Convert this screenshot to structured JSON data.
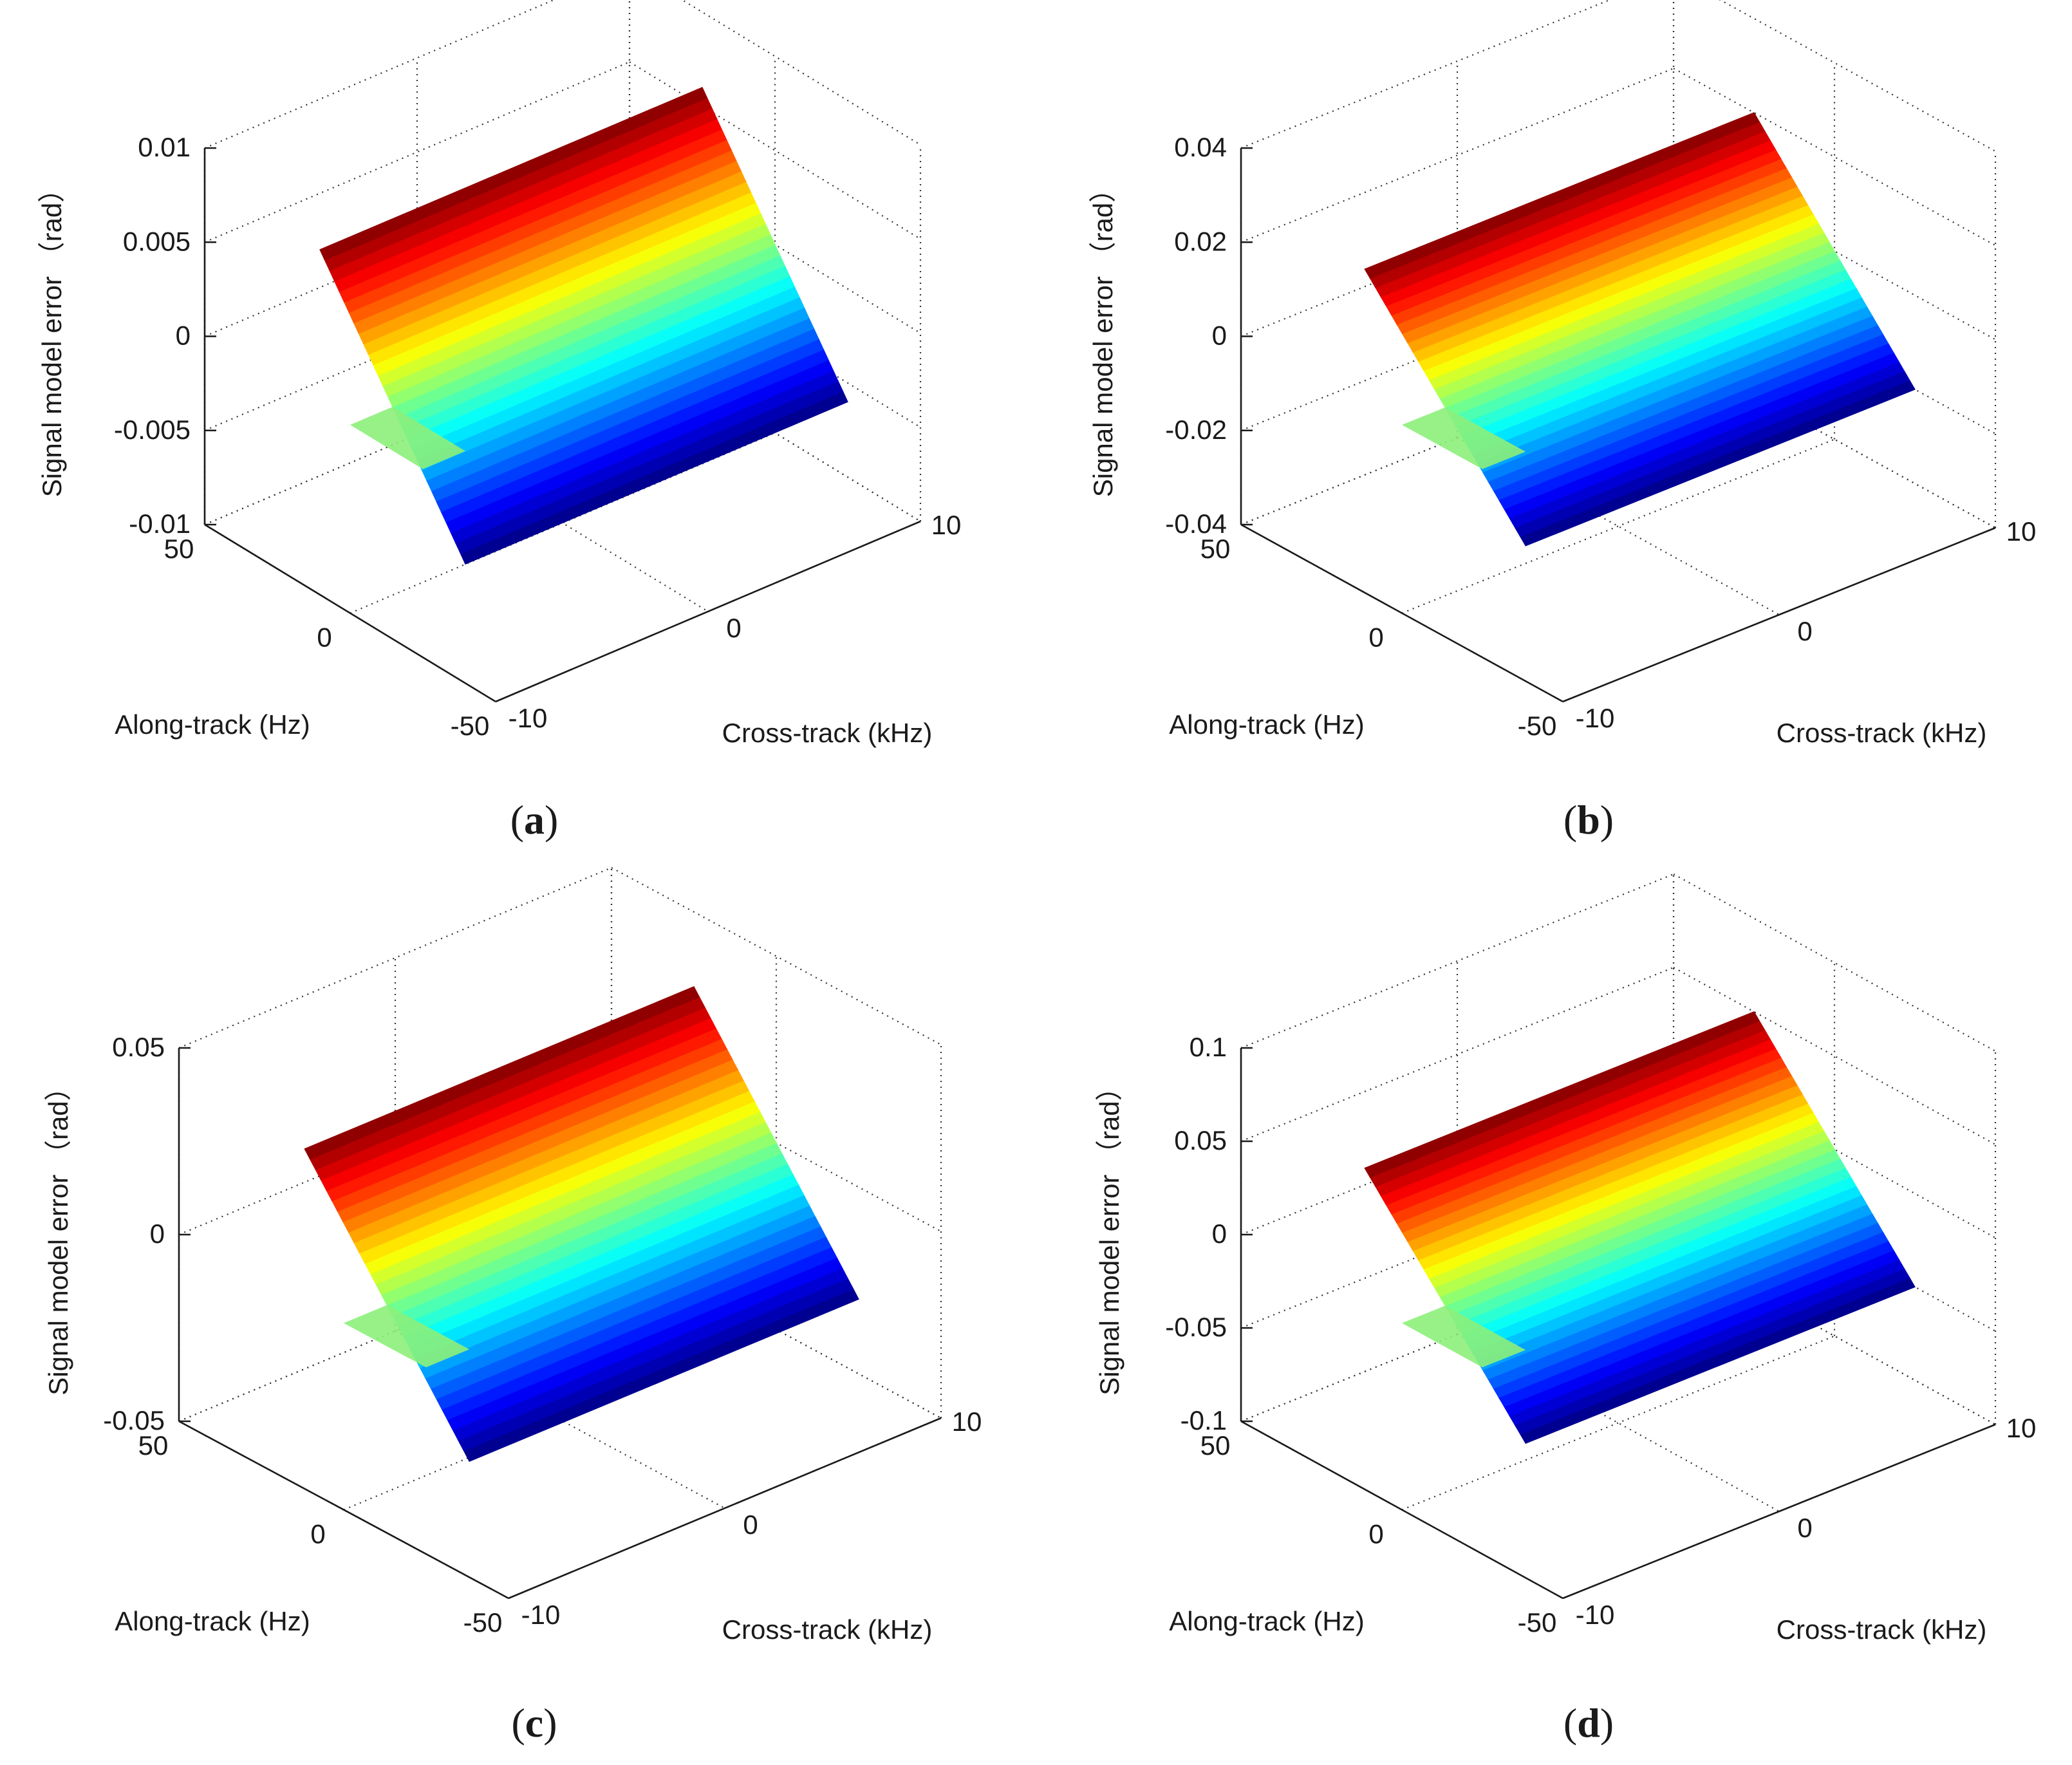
{
  "figure": {
    "background": "#ffffff",
    "colormap": "jet",
    "colors": {
      "box": "#1a1a1a",
      "grid": "#333333",
      "text": "#1a1a1a",
      "green_shelf": "#8CF07A",
      "ridge_light": "#FFFF50"
    }
  },
  "chart_data": [
    {
      "type": "surface3d",
      "panel": "(a)",
      "panel_letter": "a",
      "title": "",
      "xlabel": "Cross-track (kHz)",
      "ylabel": "Along-track (Hz)",
      "zlabel": "Signal model error （rad）",
      "xlim": [
        -10,
        10
      ],
      "ylim": [
        -50,
        50
      ],
      "zlim": [
        -0.01,
        0.01
      ],
      "xticks": [
        -10,
        0,
        10
      ],
      "xtick_labels": [
        "-10",
        "0",
        "10"
      ],
      "yticks": [
        -50,
        0,
        50
      ],
      "ytick_labels": [
        "-50",
        "0",
        "50"
      ],
      "zticks": [
        -0.01,
        -0.005,
        0,
        0.005,
        0.01
      ],
      "ztick_labels": [
        "-0.01",
        "-0.005",
        "0",
        "0.005",
        "0.01"
      ],
      "grid": true,
      "surface": {
        "along_track_hz": [
          -25,
          25
        ],
        "cross_track_khz": [
          -10,
          10
        ],
        "error_rad_at_along_min": -0.006,
        "error_rad_at_along_max": 0.006,
        "bottom_edge_rad": [
          -0.01,
          0.0
        ],
        "top_edge_rad": [
          0.0,
          0.01
        ],
        "ramp_start_khz": -10,
        "ramp_end_khz": -8
      }
    },
    {
      "type": "surface3d",
      "panel": "(b)",
      "panel_letter": "b",
      "title": "",
      "xlabel": "Cross-track (kHz)",
      "ylabel": "Along-track (Hz)",
      "zlabel": "Signal model error （rad）",
      "xlim": [
        -10,
        10
      ],
      "ylim": [
        -50,
        50
      ],
      "zlim": [
        -0.04,
        0.04
      ],
      "xticks": [
        -10,
        0,
        10
      ],
      "xtick_labels": [
        "-10",
        "0",
        "10"
      ],
      "yticks": [
        -50,
        0,
        50
      ],
      "ytick_labels": [
        "-50",
        "0",
        "50"
      ],
      "zticks": [
        -0.04,
        -0.02,
        0,
        0.02,
        0.04
      ],
      "ztick_labels": [
        "-0.04",
        "-0.02",
        "0",
        "0.02",
        "0.04"
      ],
      "grid": true,
      "surface": {
        "along_track_hz": [
          -25,
          25
        ],
        "cross_track_khz": [
          -10,
          10
        ],
        "error_rad_at_along_min": -0.02,
        "error_rad_at_along_max": 0.02,
        "bottom_edge_rad": [
          -0.036,
          0.0
        ],
        "top_edge_rad": [
          0.0,
          0.036
        ],
        "ramp_start_khz": -10,
        "ramp_end_khz": -8
      }
    },
    {
      "type": "surface3d",
      "panel": "(c)",
      "panel_letter": "c",
      "title": "",
      "xlabel": "Cross-track (kHz)",
      "ylabel": "Along-track (Hz)",
      "zlabel": "Signal model error （rad）",
      "xlim": [
        -10,
        10
      ],
      "ylim": [
        -50,
        50
      ],
      "zlim": [
        -0.05,
        0.05
      ],
      "xticks": [
        -10,
        0,
        10
      ],
      "xtick_labels": [
        "-10",
        "0",
        "10"
      ],
      "yticks": [
        -50,
        0,
        50
      ],
      "ytick_labels": [
        "-50",
        "0",
        "50"
      ],
      "zticks": [
        -0.05,
        0,
        0.05
      ],
      "ztick_labels": [
        "-0.05",
        "0",
        "0.05"
      ],
      "grid": true,
      "surface": {
        "along_track_hz": [
          -25,
          25
        ],
        "cross_track_khz": [
          -10,
          10
        ],
        "error_rad_at_along_min": -0.03,
        "error_rad_at_along_max": 0.03,
        "bottom_edge_rad": [
          -0.05,
          0.0
        ],
        "top_edge_rad": [
          0.0,
          0.05
        ],
        "ramp_start_khz": -10,
        "ramp_end_khz": -8
      }
    },
    {
      "type": "surface3d",
      "panel": "(d)",
      "panel_letter": "d",
      "title": "",
      "xlabel": "Cross-track (kHz)",
      "ylabel": "Along-track (Hz)",
      "zlabel": "Signal model error （rad）",
      "xlim": [
        -10,
        10
      ],
      "ylim": [
        -50,
        50
      ],
      "zlim": [
        -0.1,
        0.1
      ],
      "xticks": [
        -10,
        0,
        10
      ],
      "xtick_labels": [
        "-10",
        "0",
        "10"
      ],
      "yticks": [
        -50,
        0,
        50
      ],
      "ytick_labels": [
        "-50",
        "0",
        "50"
      ],
      "zticks": [
        -0.1,
        -0.05,
        0,
        0.05,
        0.1
      ],
      "ztick_labels": [
        "-0.1",
        "-0.05",
        "0",
        "0.05",
        "0.1"
      ],
      "grid": true,
      "surface": {
        "along_track_hz": [
          -25,
          25
        ],
        "cross_track_khz": [
          -10,
          10
        ],
        "error_rad_at_along_min": -0.05,
        "error_rad_at_along_max": 0.05,
        "bottom_edge_rad": [
          -0.09,
          0.0
        ],
        "top_edge_rad": [
          0.0,
          0.09
        ],
        "ramp_start_khz": -10,
        "ramp_end_khz": -8
      }
    }
  ]
}
